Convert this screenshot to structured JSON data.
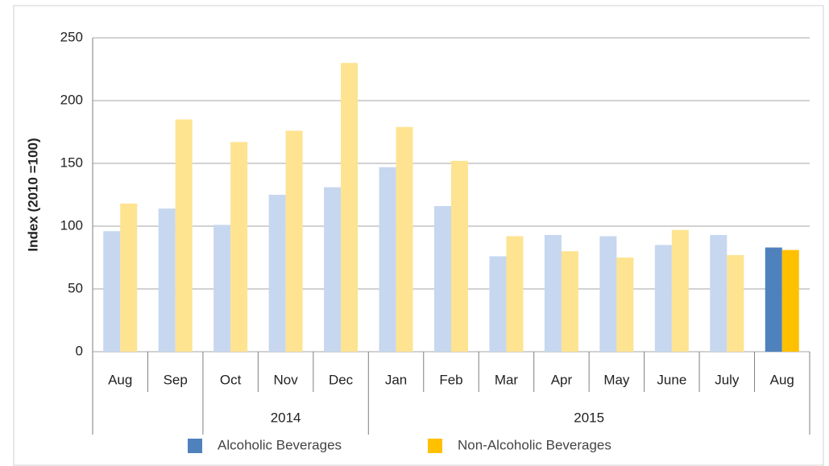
{
  "chart_data": {
    "type": "bar",
    "y_label": "Index (2010 =100)",
    "categories": [
      "Aug",
      "Sep",
      "Oct",
      "Nov",
      "Dec",
      "Jan",
      "Feb",
      "Mar",
      "Apr",
      "May",
      "June",
      "July",
      "Aug"
    ],
    "category_groups": [
      null,
      null,
      "2014",
      "2014",
      "2014",
      "2015",
      "2015",
      "2015",
      "2015",
      "2015",
      "2015",
      "2015",
      "2015"
    ],
    "series": [
      {
        "name": "Alcoholic Beverages",
        "color": "#4f81bd",
        "colors": [
          "#c6d7ef",
          "#c6d7ef",
          "#c6d7ef",
          "#c6d7ef",
          "#c6d7ef",
          "#c6d7ef",
          "#c6d7ef",
          "#c6d7ef",
          "#c6d7ef",
          "#c6d7ef",
          "#c6d7ef",
          "#c6d7ef",
          "#4f81bd"
        ],
        "values": [
          96,
          114,
          101,
          125,
          131,
          147,
          116,
          76,
          93,
          92,
          85,
          93,
          83
        ]
      },
      {
        "name": "Non-Alcoholic Beverages",
        "color": "#ffc000",
        "colors": [
          "#fee391",
          "#fee391",
          "#fee391",
          "#fee391",
          "#fee391",
          "#fee391",
          "#fee391",
          "#fee391",
          "#fee391",
          "#fee391",
          "#fee391",
          "#fee391",
          "#ffc000"
        ],
        "values": [
          118,
          185,
          167,
          176,
          230,
          179,
          152,
          92,
          80,
          75,
          97,
          77,
          81
        ]
      }
    ],
    "ylim": [
      0,
      250
    ],
    "yticks": [
      0,
      50,
      100,
      150,
      200,
      250
    ],
    "grid": true,
    "legend": "bottom"
  }
}
